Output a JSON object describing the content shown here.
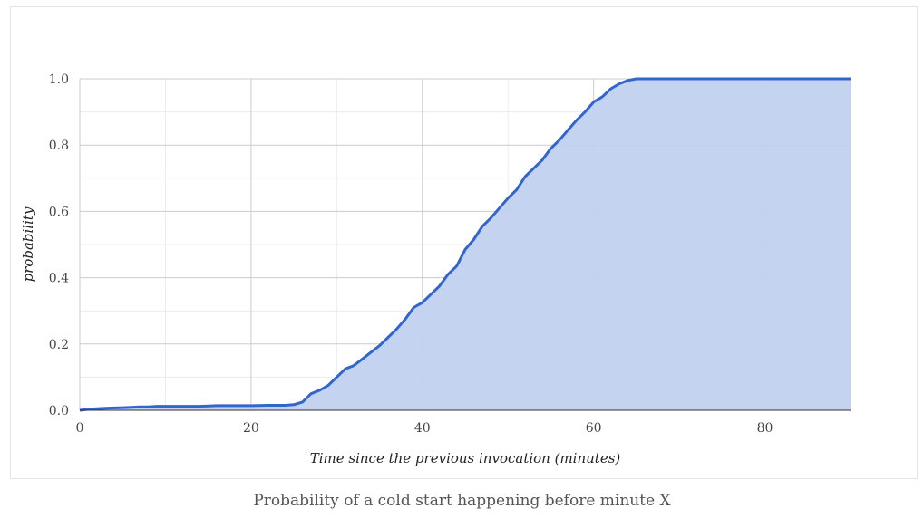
{
  "caption": "Probability of a cold start happening before minute X",
  "chart_data": {
    "type": "area",
    "xlabel": "Time since the previous invocation (minutes)",
    "ylabel": "probability",
    "xlim": [
      0,
      90
    ],
    "ylim": [
      0,
      1
    ],
    "x_ticks": [
      0,
      20,
      40,
      60,
      80
    ],
    "y_ticks": [
      0.0,
      0.2,
      0.4,
      0.6,
      0.8,
      1.0
    ],
    "y_tick_labels": [
      "0.0",
      "0.2",
      "0.4",
      "0.6",
      "0.8",
      "1.0"
    ],
    "grid": true,
    "line_color": "#3366cc",
    "fill_color": "#c0d1ef",
    "x": [
      0,
      1,
      2,
      3,
      4,
      5,
      6,
      7,
      8,
      9,
      10,
      12,
      14,
      15,
      16,
      18,
      20,
      22,
      23,
      24,
      25,
      26,
      27,
      28,
      29,
      30,
      31,
      32,
      33,
      34,
      35,
      36,
      37,
      38,
      39,
      40,
      41,
      42,
      43,
      44,
      45,
      46,
      47,
      48,
      49,
      50,
      51,
      52,
      53,
      54,
      55,
      56,
      57,
      58,
      59,
      60,
      61,
      62,
      63,
      64,
      65,
      70,
      75,
      80,
      85,
      90
    ],
    "y": [
      0.0,
      0.003,
      0.005,
      0.006,
      0.007,
      0.008,
      0.009,
      0.01,
      0.01,
      0.012,
      0.012,
      0.012,
      0.012,
      0.013,
      0.014,
      0.014,
      0.014,
      0.015,
      0.015,
      0.015,
      0.017,
      0.025,
      0.05,
      0.06,
      0.075,
      0.1,
      0.125,
      0.135,
      0.155,
      0.175,
      0.195,
      0.22,
      0.245,
      0.275,
      0.31,
      0.325,
      0.35,
      0.375,
      0.41,
      0.435,
      0.485,
      0.515,
      0.555,
      0.58,
      0.61,
      0.64,
      0.665,
      0.705,
      0.73,
      0.755,
      0.79,
      0.815,
      0.845,
      0.875,
      0.9,
      0.93,
      0.945,
      0.97,
      0.985,
      0.995,
      1.0,
      1.0,
      1.0,
      1.0,
      1.0,
      1.0
    ]
  }
}
